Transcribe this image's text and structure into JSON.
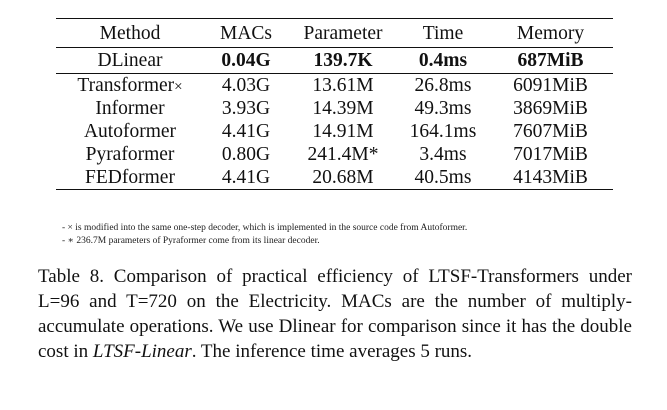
{
  "table": {
    "headers": [
      "Method",
      "MACs",
      "Parameter",
      "Time",
      "Memory"
    ],
    "highlight_row": {
      "method": "DLinear",
      "macs": "0.04G",
      "parameter": "139.7K",
      "time": "0.4ms",
      "memory": "687MiB"
    },
    "rows": [
      {
        "method": "Transformer",
        "method_mark": "×",
        "macs": "4.03G",
        "parameter": "13.61M",
        "time": "26.8ms",
        "memory": "6091MiB"
      },
      {
        "method": "Informer",
        "method_mark": "",
        "macs": "3.93G",
        "parameter": "14.39M",
        "time": "49.3ms",
        "memory": "3869MiB"
      },
      {
        "method": "Autoformer",
        "method_mark": "",
        "macs": "4.41G",
        "parameter": "14.91M",
        "time": "164.1ms",
        "memory": "7607MiB"
      },
      {
        "method": "Pyraformer",
        "method_mark": "",
        "macs": "0.80G",
        "parameter": "241.4M*",
        "time": "3.4ms",
        "memory": "7017MiB"
      },
      {
        "method": "FEDformer",
        "method_mark": "",
        "macs": "4.41G",
        "parameter": "20.68M",
        "time": "40.5ms",
        "memory": "4143MiB"
      }
    ]
  },
  "notes": [
    "- × is modified into the same one-step decoder, which is implemented in the source code from Autoformer.",
    "- ∗ 236.7M parameters of Pyraformer come from its linear decoder."
  ],
  "caption": {
    "part1": "Table 8. Comparison of practical efficiency of LTSF-Transformers under L=96 and T=720 on the Electricity. MACs are the number of multiply-accumulate operations. We use Dlinear for comparison since it has the double cost in ",
    "emphasis": "LTSF-Linear",
    "part2": ". The inference time averages 5 runs."
  }
}
